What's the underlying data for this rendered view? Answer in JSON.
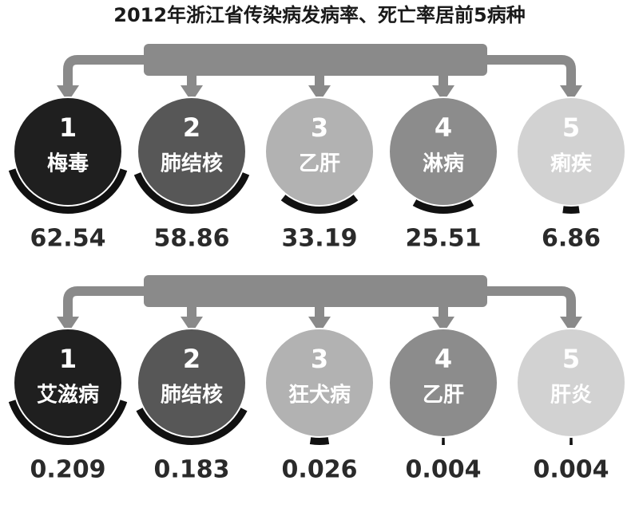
{
  "title": "2012年浙江省传染病发病率、死亡率居前5病种",
  "sections": [
    {
      "items": [
        {
          "rank": 1,
          "name": "梅毒",
          "value": 62.54
        },
        {
          "rank": 2,
          "name": "肺结核",
          "value": 58.86
        },
        {
          "rank": 3,
          "name": "乙肝",
          "value": 33.19
        },
        {
          "rank": 4,
          "name": "淋病",
          "value": 25.51
        },
        {
          "rank": 5,
          "name": "痢疾",
          "value": 6.86
        }
      ]
    },
    {
      "items": [
        {
          "rank": 1,
          "name": "艾滋病",
          "value": 0.209
        },
        {
          "rank": 2,
          "name": "肺结核",
          "value": 0.183
        },
        {
          "rank": 3,
          "name": "狂犬病",
          "value": 0.026
        },
        {
          "rank": 4,
          "name": "乙肝",
          "value": 0.004
        },
        {
          "rank": 5,
          "name": "肝炎",
          "value": 0.004
        }
      ]
    }
  ]
}
